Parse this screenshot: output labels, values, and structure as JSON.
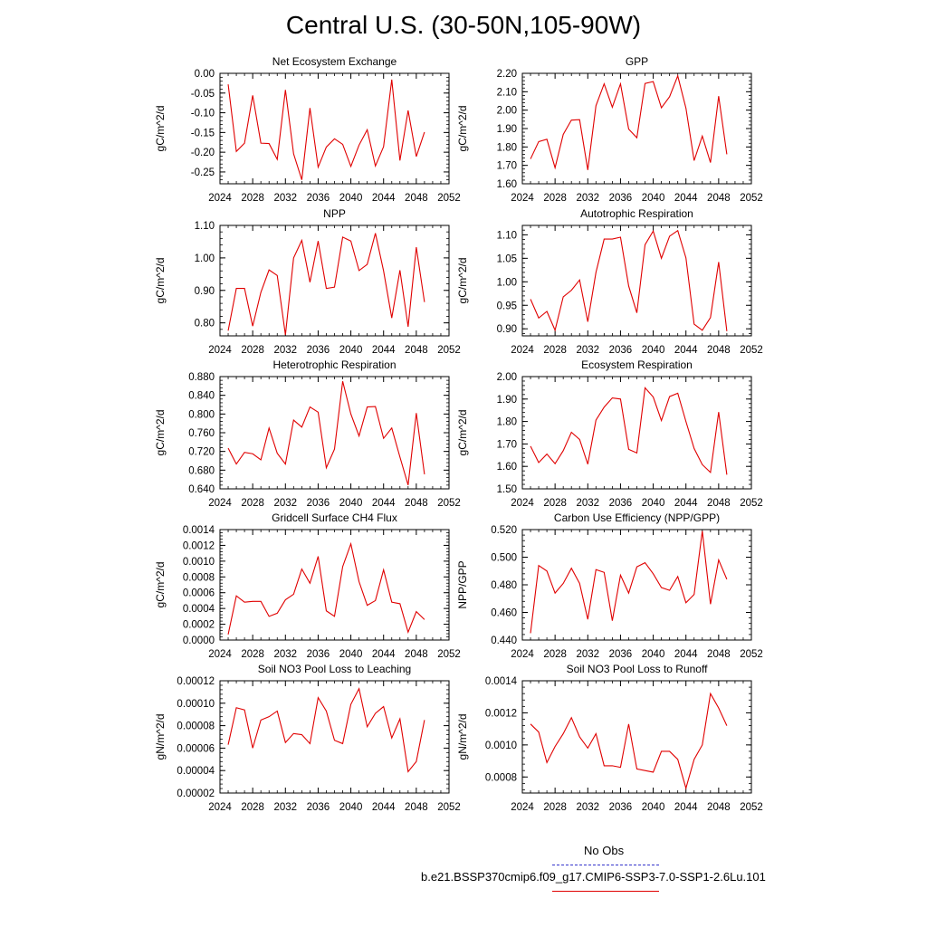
{
  "page": {
    "title": "Central U.S. (30-50N,105-90W)"
  },
  "legend": {
    "obs_label": "No Obs",
    "obs_color": "#3333cc",
    "model_label": "b.e21.BSSP370cmip6.f09_g17.CMIP6-SSP3-7.0-SSP1-2.6Lu.101",
    "model_color": "#e00000"
  },
  "chart_data": [
    {
      "type": "line",
      "title": "Net Ecosystem Exchange",
      "ylabel": "gC/m^2/d",
      "xlabel": "",
      "xlim": [
        2024,
        2052
      ],
      "ylim": [
        -0.28,
        0.0
      ],
      "yticks": [
        0.0,
        -0.05,
        -0.1,
        -0.15,
        -0.2,
        -0.25
      ],
      "ytick_labels": [
        "0.00",
        "-0.05",
        "-0.10",
        "-0.15",
        "-0.20",
        "-0.25"
      ],
      "xticks": [
        2024,
        2028,
        2032,
        2036,
        2040,
        2044,
        2048,
        2052
      ],
      "x": [
        2025,
        2026,
        2027,
        2028,
        2029,
        2030,
        2031,
        2032,
        2033,
        2034,
        2035,
        2036,
        2037,
        2038,
        2039,
        2040,
        2041,
        2042,
        2043,
        2044,
        2045,
        2046,
        2047,
        2048,
        2049
      ],
      "series": [
        {
          "color": "#e00000",
          "values": [
            -0.028,
            -0.198,
            -0.177,
            -0.056,
            -0.177,
            -0.178,
            -0.218,
            -0.042,
            -0.204,
            -0.27,
            -0.088,
            -0.238,
            -0.187,
            -0.166,
            -0.18,
            -0.236,
            -0.182,
            -0.143,
            -0.235,
            -0.186,
            -0.016,
            -0.221,
            -0.094,
            -0.211,
            -0.149
          ]
        }
      ]
    },
    {
      "type": "line",
      "title": "GPP",
      "ylabel": "gC/m^2/d",
      "xlabel": "",
      "xlim": [
        2024,
        2052
      ],
      "ylim": [
        1.6,
        2.2
      ],
      "yticks": [
        1.6,
        1.7,
        1.8,
        1.9,
        2.0,
        2.1,
        2.2
      ],
      "ytick_labels": [
        "1.60",
        "1.70",
        "1.80",
        "1.90",
        "2.00",
        "2.10",
        "2.20"
      ],
      "xticks": [
        2024,
        2028,
        2032,
        2036,
        2040,
        2044,
        2048,
        2052
      ],
      "x": [
        2025,
        2026,
        2027,
        2028,
        2029,
        2030,
        2031,
        2032,
        2033,
        2034,
        2035,
        2036,
        2037,
        2038,
        2039,
        2040,
        2041,
        2042,
        2043,
        2044,
        2045,
        2046,
        2047,
        2048,
        2049
      ],
      "series": [
        {
          "color": "#e00000",
          "values": [
            1.735,
            1.829,
            1.842,
            1.687,
            1.868,
            1.946,
            1.948,
            1.675,
            2.024,
            2.143,
            2.016,
            2.143,
            1.897,
            1.85,
            2.145,
            2.155,
            2.013,
            2.073,
            2.186,
            2.011,
            1.726,
            1.859,
            1.715,
            2.076,
            1.76
          ]
        }
      ]
    },
    {
      "type": "line",
      "title": "NPP",
      "ylabel": "gC/m^2/d",
      "xlabel": "",
      "xlim": [
        2024,
        2052
      ],
      "ylim": [
        0.76,
        1.1
      ],
      "yticks": [
        0.8,
        0.9,
        1.0,
        1.1
      ],
      "ytick_labels": [
        "0.80",
        "0.90",
        "1.00",
        "1.10"
      ],
      "xticks": [
        2024,
        2028,
        2032,
        2036,
        2040,
        2044,
        2048,
        2052
      ],
      "x": [
        2025,
        2026,
        2027,
        2028,
        2029,
        2030,
        2031,
        2032,
        2033,
        2034,
        2035,
        2036,
        2037,
        2038,
        2039,
        2040,
        2041,
        2042,
        2043,
        2044,
        2045,
        2046,
        2047,
        2048,
        2049
      ],
      "series": [
        {
          "color": "#e00000",
          "values": [
            0.776,
            0.906,
            0.906,
            0.79,
            0.894,
            0.963,
            0.946,
            0.763,
            1.0,
            1.054,
            0.925,
            1.052,
            0.906,
            0.91,
            1.064,
            1.052,
            0.961,
            0.98,
            1.076,
            0.96,
            0.815,
            0.962,
            0.788,
            1.033,
            0.864
          ]
        }
      ]
    },
    {
      "type": "line",
      "title": "Autotrophic Respiration",
      "ylabel": "gC/m^2/d",
      "xlabel": "",
      "xlim": [
        2024,
        2052
      ],
      "ylim": [
        0.885,
        1.12
      ],
      "yticks": [
        0.9,
        0.95,
        1.0,
        1.05,
        1.1
      ],
      "ytick_labels": [
        "0.90",
        "0.95",
        "1.00",
        "1.05",
        "1.10"
      ],
      "xticks": [
        2024,
        2028,
        2032,
        2036,
        2040,
        2044,
        2048,
        2052
      ],
      "x": [
        2025,
        2026,
        2027,
        2028,
        2029,
        2030,
        2031,
        2032,
        2033,
        2034,
        2035,
        2036,
        2037,
        2038,
        2039,
        2040,
        2041,
        2042,
        2043,
        2044,
        2045,
        2046,
        2047,
        2048,
        2049
      ],
      "series": [
        {
          "color": "#e00000",
          "values": [
            0.963,
            0.923,
            0.937,
            0.897,
            0.968,
            0.982,
            1.004,
            0.915,
            1.02,
            1.091,
            1.091,
            1.095,
            0.991,
            0.934,
            1.079,
            1.108,
            1.05,
            1.097,
            1.109,
            1.051,
            0.91,
            0.897,
            0.924,
            1.042,
            0.895
          ]
        }
      ]
    },
    {
      "type": "line",
      "title": "Heterotrophic Respiration",
      "ylabel": "gC/m^2/d",
      "xlabel": "",
      "xlim": [
        2024,
        2052
      ],
      "ylim": [
        0.64,
        0.88
      ],
      "yticks": [
        0.64,
        0.68,
        0.72,
        0.76,
        0.8,
        0.84,
        0.88
      ],
      "ytick_labels": [
        "0.640",
        "0.680",
        "0.720",
        "0.760",
        "0.800",
        "0.840",
        "0.880"
      ],
      "xticks": [
        2024,
        2028,
        2032,
        2036,
        2040,
        2044,
        2048,
        2052
      ],
      "x": [
        2025,
        2026,
        2027,
        2028,
        2029,
        2030,
        2031,
        2032,
        2033,
        2034,
        2035,
        2036,
        2037,
        2038,
        2039,
        2040,
        2041,
        2042,
        2043,
        2044,
        2045,
        2046,
        2047,
        2048,
        2049
      ],
      "series": [
        {
          "color": "#e00000",
          "values": [
            0.727,
            0.693,
            0.718,
            0.715,
            0.702,
            0.77,
            0.716,
            0.693,
            0.787,
            0.772,
            0.815,
            0.804,
            0.685,
            0.725,
            0.87,
            0.8,
            0.753,
            0.815,
            0.816,
            0.748,
            0.77,
            0.708,
            0.648,
            0.802,
            0.671
          ]
        }
      ]
    },
    {
      "type": "line",
      "title": "Ecosystem Respiration",
      "ylabel": "gC/m^2/d",
      "xlabel": "",
      "xlim": [
        2024,
        2052
      ],
      "ylim": [
        1.5,
        2.0
      ],
      "yticks": [
        1.5,
        1.6,
        1.7,
        1.8,
        1.9,
        2.0
      ],
      "ytick_labels": [
        "1.50",
        "1.60",
        "1.70",
        "1.80",
        "1.90",
        "2.00"
      ],
      "xticks": [
        2024,
        2028,
        2032,
        2036,
        2040,
        2044,
        2048,
        2052
      ],
      "x": [
        2025,
        2026,
        2027,
        2028,
        2029,
        2030,
        2031,
        2032,
        2033,
        2034,
        2035,
        2036,
        2037,
        2038,
        2039,
        2040,
        2041,
        2042,
        2043,
        2044,
        2045,
        2046,
        2047,
        2048,
        2049
      ],
      "series": [
        {
          "color": "#e00000",
          "values": [
            1.69,
            1.617,
            1.655,
            1.612,
            1.67,
            1.752,
            1.72,
            1.61,
            1.806,
            1.864,
            1.905,
            1.9,
            1.676,
            1.66,
            1.95,
            1.909,
            1.804,
            1.911,
            1.926,
            1.8,
            1.68,
            1.608,
            1.573,
            1.842,
            1.563
          ]
        }
      ]
    },
    {
      "type": "line",
      "title": "Gridcell Surface CH4 Flux",
      "ylabel": "gC/m^2/d",
      "xlabel": "",
      "xlim": [
        2024,
        2052
      ],
      "ylim": [
        0.0,
        0.0014
      ],
      "yticks": [
        0.0,
        0.0002,
        0.0004,
        0.0006,
        0.0008,
        0.001,
        0.0012,
        0.0014
      ],
      "ytick_labels": [
        "0.0000",
        "0.0002",
        "0.0004",
        "0.0006",
        "0.0008",
        "0.0010",
        "0.0012",
        "0.0014"
      ],
      "xticks": [
        2024,
        2028,
        2032,
        2036,
        2040,
        2044,
        2048,
        2052
      ],
      "x": [
        2025,
        2026,
        2027,
        2028,
        2029,
        2030,
        2031,
        2032,
        2033,
        2034,
        2035,
        2036,
        2037,
        2038,
        2039,
        2040,
        2041,
        2042,
        2043,
        2044,
        2045,
        2046,
        2047,
        2048,
        2049
      ],
      "series": [
        {
          "color": "#e00000",
          "values": [
            7e-05,
            0.00056,
            0.00048,
            0.00049,
            0.00049,
            0.0003,
            0.00034,
            0.00051,
            0.00058,
            0.0009,
            0.00072,
            0.00106,
            0.00037,
            0.0003,
            0.00093,
            0.00122,
            0.00074,
            0.00044,
            0.0005,
            0.00089,
            0.00048,
            0.00046,
            0.0001,
            0.00036,
            0.00026
          ]
        }
      ]
    },
    {
      "type": "line",
      "title": "Carbon Use Efficiency (NPP/GPP)",
      "ylabel": "NPP/GPP",
      "xlabel": "",
      "xlim": [
        2024,
        2052
      ],
      "ylim": [
        0.44,
        0.52
      ],
      "yticks": [
        0.44,
        0.46,
        0.48,
        0.5,
        0.52
      ],
      "ytick_labels": [
        "0.440",
        "0.460",
        "0.480",
        "0.500",
        "0.520"
      ],
      "xticks": [
        2024,
        2028,
        2032,
        2036,
        2040,
        2044,
        2048,
        2052
      ],
      "x": [
        2025,
        2026,
        2027,
        2028,
        2029,
        2030,
        2031,
        2032,
        2033,
        2034,
        2035,
        2036,
        2037,
        2038,
        2039,
        2040,
        2041,
        2042,
        2043,
        2044,
        2045,
        2046,
        2047,
        2048,
        2049
      ],
      "series": [
        {
          "color": "#e00000",
          "values": [
            0.445,
            0.494,
            0.49,
            0.474,
            0.481,
            0.492,
            0.481,
            0.455,
            0.491,
            0.489,
            0.454,
            0.487,
            0.474,
            0.493,
            0.496,
            0.488,
            0.478,
            0.476,
            0.486,
            0.467,
            0.473,
            0.519,
            0.466,
            0.498,
            0.484
          ]
        }
      ]
    },
    {
      "type": "line",
      "title": "Soil NO3 Pool Loss to Leaching",
      "ylabel": "gN/m^2/d",
      "xlabel": "",
      "xlim": [
        2024,
        2052
      ],
      "ylim": [
        2e-05,
        0.00012
      ],
      "yticks": [
        2e-05,
        4e-05,
        6e-05,
        8e-05,
        0.0001,
        0.00012
      ],
      "ytick_labels": [
        "0.00002",
        "0.00004",
        "0.00006",
        "0.00008",
        "0.00010",
        "0.00012"
      ],
      "xticks": [
        2024,
        2028,
        2032,
        2036,
        2040,
        2044,
        2048,
        2052
      ],
      "x": [
        2025,
        2026,
        2027,
        2028,
        2029,
        2030,
        2031,
        2032,
        2033,
        2034,
        2035,
        2036,
        2037,
        2038,
        2039,
        2040,
        2041,
        2042,
        2043,
        2044,
        2045,
        2046,
        2047,
        2048,
        2049
      ],
      "series": [
        {
          "color": "#e00000",
          "values": [
            6.3e-05,
            9.6e-05,
            9.4e-05,
            6e-05,
            8.5e-05,
            8.8e-05,
            9.3e-05,
            6.5e-05,
            7.3e-05,
            7.2e-05,
            6.4e-05,
            0.000105,
            9.3e-05,
            6.7e-05,
            6.4e-05,
            9.9e-05,
            0.000113,
            7.9e-05,
            9.1e-05,
            9.7e-05,
            6.9e-05,
            8.6e-05,
            3.9e-05,
            4.8e-05,
            8.5e-05
          ]
        }
      ]
    },
    {
      "type": "line",
      "title": "Soil NO3 Pool Loss to Runoff",
      "ylabel": "gN/m^2/d",
      "xlabel": "",
      "xlim": [
        2024,
        2052
      ],
      "ylim": [
        0.0007,
        0.0014
      ],
      "yticks": [
        0.0008,
        0.001,
        0.0012,
        0.0014
      ],
      "ytick_labels": [
        "0.0008",
        "0.0010",
        "0.0012",
        "0.0014"
      ],
      "xticks": [
        2024,
        2028,
        2032,
        2036,
        2040,
        2044,
        2048,
        2052
      ],
      "x": [
        2025,
        2026,
        2027,
        2028,
        2029,
        2030,
        2031,
        2032,
        2033,
        2034,
        2035,
        2036,
        2037,
        2038,
        2039,
        2040,
        2041,
        2042,
        2043,
        2044,
        2045,
        2046,
        2047,
        2048,
        2049
      ],
      "series": [
        {
          "color": "#e00000",
          "values": [
            0.00113,
            0.00108,
            0.00089,
            0.00099,
            0.00107,
            0.00117,
            0.00105,
            0.00098,
            0.00107,
            0.00087,
            0.00087,
            0.00086,
            0.00113,
            0.00085,
            0.00084,
            0.00083,
            0.00096,
            0.00096,
            0.00091,
            0.00073,
            0.00091,
            0.001,
            0.00132,
            0.00123,
            0.00112
          ]
        }
      ]
    }
  ]
}
